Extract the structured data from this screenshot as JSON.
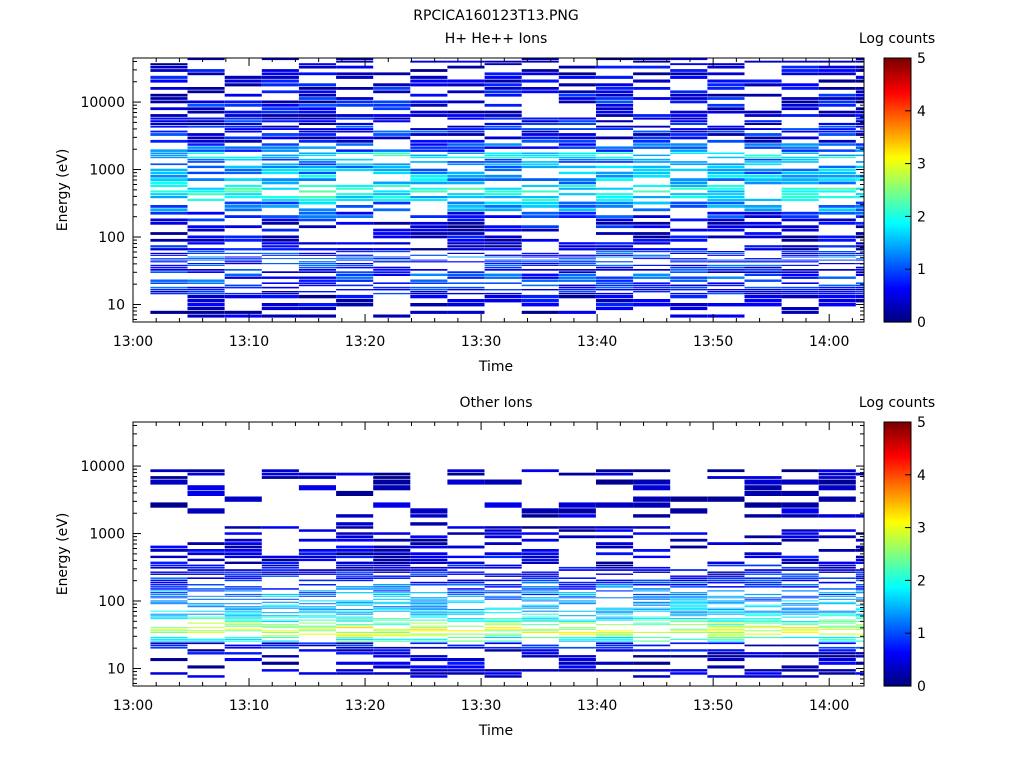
{
  "figure_title": "RPCICA160123T13.PNG",
  "colors": {
    "colormap": [
      "#00007f",
      "#0000ff",
      "#007fff",
      "#00ffff",
      "#7fff7f",
      "#ffff00",
      "#ff7f00",
      "#ff0000",
      "#7f0000"
    ]
  },
  "chart_data": [
    {
      "type": "heatmap",
      "title": "H+ He++ Ions",
      "xlabel": "Time",
      "ylabel": "Energy (eV)",
      "x_ticks": [
        "13:00",
        "13:10",
        "13:20",
        "13:30",
        "13:40",
        "13:50",
        "14:00"
      ],
      "y_ticks": [
        "10",
        "100",
        "1000",
        "10000"
      ],
      "y_scale": "log",
      "ylim": [
        5.5,
        45000
      ],
      "xlim_minutes": [
        0,
        63
      ],
      "time_bins_minutes": [
        1.5,
        4.7,
        7.9,
        11.1,
        14.3,
        17.5,
        20.7,
        23.9,
        27.1,
        30.3,
        33.5,
        36.7,
        39.9,
        43.1,
        46.3,
        49.5,
        52.7,
        55.9,
        59.1,
        62.3
      ],
      "colorbar": {
        "label": "Log counts",
        "range": [
          0,
          5
        ],
        "ticks": [
          "0",
          "1",
          "2",
          "3",
          "4",
          "5"
        ]
      },
      "profile": {
        "energy_eV": [
          7,
          12,
          16,
          18,
          25,
          33,
          40,
          48,
          55,
          70,
          100,
          140,
          200,
          280,
          400,
          500,
          700,
          1000,
          1300,
          1600,
          2000,
          3000,
          4000,
          5000,
          7000,
          10000,
          14000,
          20000,
          30000,
          40000
        ],
        "log_counts": [
          0.2,
          0.4,
          0.6,
          0.8,
          0.9,
          0.7,
          0.8,
          1.0,
          0.8,
          0.5,
          0.4,
          0.5,
          0.8,
          1.3,
          1.8,
          1.9,
          1.5,
          1.4,
          1.3,
          1.8,
          1.0,
          0.6,
          0.7,
          0.6,
          0.5,
          0.6,
          0.5,
          0.4,
          0.4,
          0.3
        ]
      }
    },
    {
      "type": "heatmap",
      "title": "Other Ions",
      "xlabel": "Time",
      "ylabel": "Energy (eV)",
      "x_ticks": [
        "13:00",
        "13:10",
        "13:20",
        "13:30",
        "13:40",
        "13:50",
        "14:00"
      ],
      "y_ticks": [
        "10",
        "100",
        "1000",
        "10000"
      ],
      "y_scale": "log",
      "ylim": [
        5.5,
        45000
      ],
      "xlim_minutes": [
        0,
        63
      ],
      "time_bins_minutes": [
        1.5,
        4.7,
        7.9,
        11.1,
        14.3,
        17.5,
        20.7,
        23.9,
        27.1,
        30.3,
        33.5,
        36.7,
        39.9,
        43.1,
        46.3,
        49.5,
        52.7,
        55.9,
        59.1,
        62.3
      ],
      "colorbar": {
        "label": "Log counts",
        "range": [
          0,
          5
        ],
        "ticks": [
          "0",
          "1",
          "2",
          "3",
          "4",
          "5"
        ]
      },
      "profile": {
        "energy_eV": [
          8,
          12,
          17,
          22,
          27,
          32,
          38,
          44,
          52,
          60,
          70,
          82,
          95,
          110,
          130,
          160,
          200,
          250,
          300,
          400,
          550,
          800,
          1100,
          1500,
          2500,
          5000,
          8000
        ],
        "log_counts": [
          0.2,
          0.3,
          0.4,
          0.6,
          2.0,
          2.8,
          2.9,
          2.5,
          2.0,
          1.7,
          1.6,
          1.5,
          1.4,
          1.3,
          1.2,
          1.0,
          0.8,
          0.6,
          0.5,
          0.4,
          0.3,
          0.2,
          0.2,
          0.1,
          0.1,
          0.1,
          0.1
        ]
      }
    }
  ]
}
